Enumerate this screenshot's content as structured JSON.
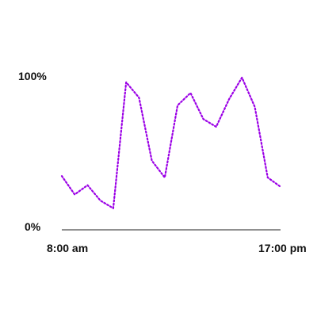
{
  "chart_data": {
    "type": "line",
    "title": "",
    "xlabel": "",
    "ylabel": "",
    "x_tick_labels": [
      "8:00 am",
      "17:00 pm"
    ],
    "y_tick_labels": [
      "0%",
      "100%"
    ],
    "ylim": [
      0,
      100
    ],
    "grid": false,
    "legend": "none",
    "series": [
      {
        "color": "#9b00e6",
        "values": [
          35,
          23,
          29,
          19,
          14,
          96,
          86,
          45,
          34,
          81,
          89,
          72,
          67,
          85,
          99,
          80,
          34,
          28
        ]
      }
    ]
  }
}
